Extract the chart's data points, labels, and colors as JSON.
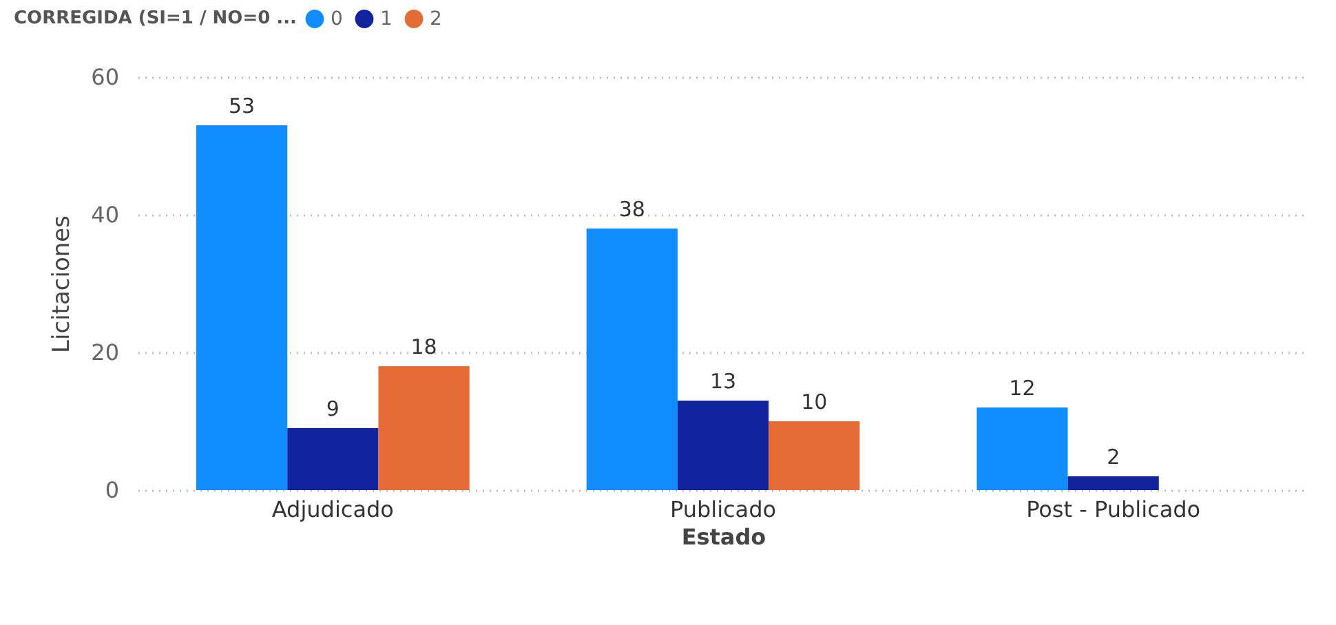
{
  "chart_data": {
    "type": "bar",
    "xlabel": "Estado",
    "ylabel": "Licitaciones",
    "legend_title": "CORREGIDA (SI=1 / NO=0 ...",
    "legend": "top left",
    "grid": "y",
    "data_labels": true,
    "categories": [
      "Adjudicado",
      "Publicado",
      "Post - Publicado"
    ],
    "ylim": [
      0,
      60
    ],
    "yticks": [
      0,
      20,
      40,
      60
    ],
    "series": [
      {
        "name": "0",
        "color": "#118dff",
        "values": [
          53,
          38,
          12
        ]
      },
      {
        "name": "1",
        "color": "#12239e",
        "values": [
          9,
          13,
          2
        ]
      },
      {
        "name": "2",
        "color": "#e66c37",
        "values": [
          18,
          10,
          null
        ]
      }
    ]
  }
}
